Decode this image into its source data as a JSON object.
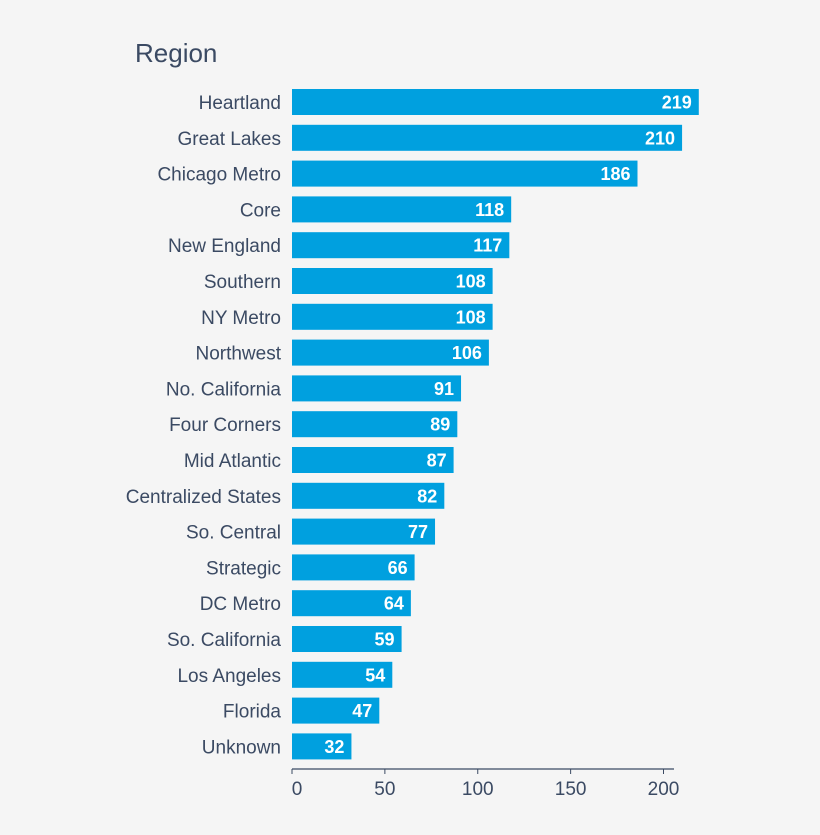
{
  "chart_data": {
    "type": "bar",
    "orientation": "horizontal",
    "title": "Region",
    "categories": [
      "Heartland",
      "Great Lakes",
      "Chicago Metro",
      "Core",
      "New England",
      "Southern",
      "NY Metro",
      "Northwest",
      "No. California",
      "Four Corners",
      "Mid Atlantic",
      "Centralized States",
      "So. Central",
      "Strategic",
      "DC Metro",
      "So. California",
      "Los Angeles",
      "Florida",
      "Unknown"
    ],
    "values": [
      219,
      210,
      186,
      118,
      117,
      108,
      108,
      106,
      91,
      89,
      87,
      82,
      77,
      66,
      64,
      59,
      54,
      47,
      32
    ],
    "xlim": [
      0,
      200
    ],
    "xticks": [
      0,
      50,
      100,
      150,
      200
    ],
    "grid": false,
    "legend": "none",
    "bar_color": "#00a0df",
    "label_color": "#3b4a63",
    "axis_color": "#3b4a63"
  }
}
